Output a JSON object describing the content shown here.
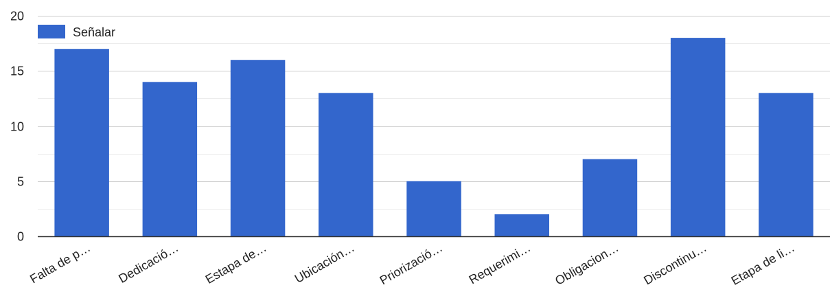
{
  "chart_data": {
    "type": "bar",
    "categories": [
      "Falta de p…",
      "Dedicació…",
      "Estapa de…",
      "Ubicación…",
      "Priorizació…",
      "Requerimi…",
      "Obligacion…",
      "Discontinu…",
      "Etapa de li…"
    ],
    "series": [
      {
        "name": "Señalar",
        "values": [
          17,
          14,
          16,
          13,
          5,
          2,
          7,
          18,
          13
        ]
      }
    ],
    "ylim": [
      0,
      20
    ],
    "yticks": [
      "0",
      "5",
      "10",
      "15",
      "20"
    ],
    "grid": true,
    "minor_grid": true,
    "legend_position": "top-left",
    "colors": {
      "bar": "#3366cc",
      "grid": "#cccccc",
      "minor_grid": "#ebebeb",
      "axis": "#333333",
      "text": "#222222"
    }
  }
}
